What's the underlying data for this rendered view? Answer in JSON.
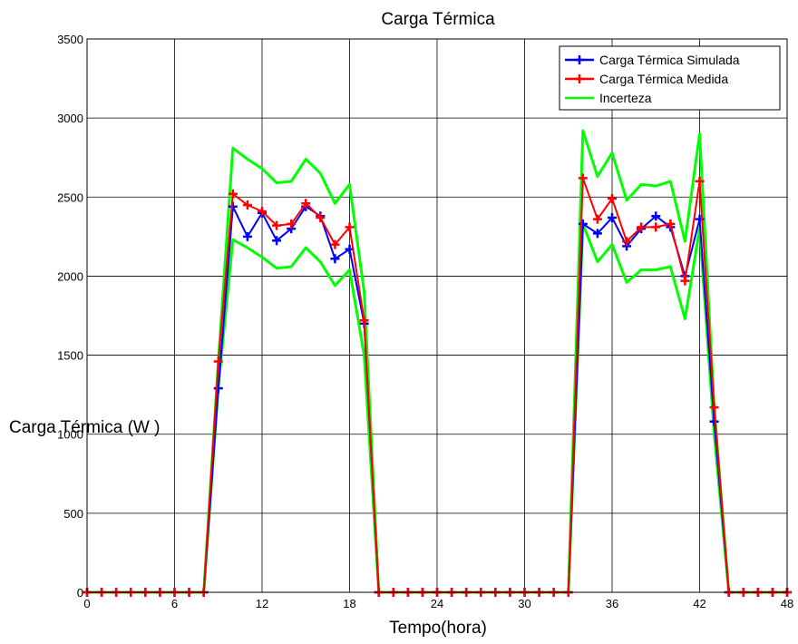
{
  "chart_data": {
    "type": "line",
    "title": "Carga Térmica",
    "xlabel": "Tempo(hora)",
    "ylabel": "Carga Térmica (W )",
    "xlim": [
      0,
      48
    ],
    "ylim": [
      0,
      3500
    ],
    "xticks": [
      0,
      6,
      12,
      18,
      24,
      30,
      36,
      42,
      48
    ],
    "yticks": [
      0,
      500,
      1000,
      1500,
      2000,
      2500,
      3000,
      3500
    ],
    "grid": true,
    "legend_position": "top-right",
    "x": [
      0,
      1,
      2,
      3,
      4,
      5,
      6,
      7,
      8,
      9,
      10,
      11,
      12,
      13,
      14,
      15,
      16,
      17,
      18,
      19,
      20,
      21,
      22,
      23,
      24,
      25,
      26,
      27,
      28,
      29,
      30,
      31,
      32,
      33,
      34,
      35,
      36,
      37,
      38,
      39,
      40,
      41,
      42,
      43,
      44,
      45,
      46,
      47,
      48
    ],
    "series": [
      {
        "name": "Carga Térmica Simulada",
        "color": "#0000ff",
        "values": [
          0,
          0,
          0,
          0,
          0,
          0,
          0,
          0,
          0,
          1290,
          2440,
          2250,
          2400,
          2225,
          2300,
          2440,
          2380,
          2110,
          2170,
          1700,
          0,
          0,
          0,
          0,
          0,
          0,
          0,
          0,
          0,
          0,
          0,
          0,
          0,
          0,
          2330,
          2270,
          2370,
          2190,
          2300,
          2380,
          2310,
          2000,
          2360,
          1080,
          0,
          0,
          0,
          0,
          0
        ]
      },
      {
        "name": "Carga Térmica Medida",
        "color": "#ff0000",
        "values": [
          0,
          0,
          0,
          0,
          0,
          0,
          0,
          0,
          0,
          1460,
          2520,
          2450,
          2410,
          2320,
          2330,
          2460,
          2370,
          2200,
          2310,
          1720,
          0,
          0,
          0,
          0,
          0,
          0,
          0,
          0,
          0,
          0,
          0,
          0,
          0,
          0,
          2620,
          2360,
          2490,
          2220,
          2310,
          2310,
          2330,
          1970,
          2600,
          1170,
          0,
          0,
          0,
          0,
          0
        ]
      },
      {
        "name": "Incerteza",
        "color": "#00ff00",
        "values": [
          0,
          0,
          0,
          0,
          0,
          0,
          0,
          0,
          0,
          1460,
          2810,
          2740,
          2680,
          2590,
          2600,
          2740,
          2650,
          2460,
          2580,
          1900,
          0,
          0,
          0,
          0,
          0,
          0,
          0,
          0,
          0,
          0,
          0,
          0,
          0,
          0,
          2920,
          2630,
          2780,
          2480,
          2580,
          2570,
          2600,
          2220,
          2900,
          1170,
          0,
          0,
          0,
          0,
          0
        ]
      },
      {
        "name": "",
        "color": "#00ff00",
        "values": [
          0,
          0,
          0,
          0,
          0,
          0,
          0,
          0,
          0,
          1300,
          2230,
          2180,
          2120,
          2050,
          2060,
          2180,
          2090,
          1940,
          2040,
          1500,
          0,
          0,
          0,
          0,
          0,
          0,
          0,
          0,
          0,
          0,
          0,
          0,
          0,
          0,
          2330,
          2090,
          2200,
          1960,
          2040,
          2040,
          2060,
          1730,
          2300,
          1000,
          0,
          0,
          0,
          0,
          0
        ]
      }
    ]
  }
}
